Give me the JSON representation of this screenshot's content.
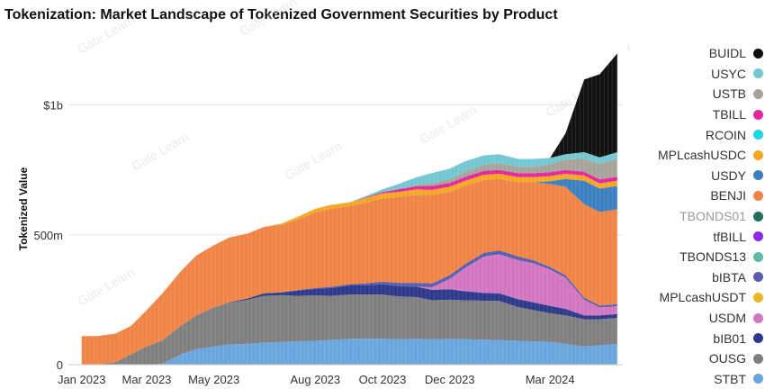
{
  "title": "Tokenization: Market Landscape of Tokenized Government Securities by Product",
  "watermark": "Gate Learn",
  "chart_data": {
    "type": "area",
    "stacked": true,
    "ylabel": "Tokenized Value",
    "xlabel": "",
    "x_tick_labels": [
      "Jan 2023",
      "Mar 2023",
      "May 2023",
      "Aug 2023",
      "Oct 2023",
      "Dec 2023",
      "Mar 2024"
    ],
    "y_ticks": [
      {
        "value": 0,
        "label": "0"
      },
      {
        "value": 500,
        "label": "500m"
      },
      {
        "value": 1000,
        "label": "$1b"
      }
    ],
    "ylim": [
      0,
      1300
    ],
    "y_unit": "millions USD",
    "grid": true,
    "legend_position": "right",
    "x": [
      "2023-01-01",
      "2023-01-15",
      "2023-02-01",
      "2023-02-15",
      "2023-03-01",
      "2023-03-15",
      "2023-04-01",
      "2023-04-15",
      "2023-05-01",
      "2023-05-15",
      "2023-06-01",
      "2023-06-15",
      "2023-07-01",
      "2023-07-15",
      "2023-08-01",
      "2023-08-15",
      "2023-09-01",
      "2023-09-15",
      "2023-10-01",
      "2023-10-15",
      "2023-11-01",
      "2023-11-15",
      "2023-12-01",
      "2023-12-15",
      "2024-01-01",
      "2024-01-15",
      "2024-02-01",
      "2024-02-15",
      "2024-03-01",
      "2024-03-15",
      "2024-04-01",
      "2024-04-15",
      "2024-05-01"
    ],
    "series": [
      {
        "name": "STBT",
        "color": "#6aa6dd",
        "values": [
          0,
          0,
          0,
          0,
          0,
          3,
          40,
          60,
          70,
          78,
          80,
          85,
          88,
          90,
          92,
          95,
          100,
          100,
          100,
          98,
          100,
          98,
          100,
          98,
          96,
          95,
          92,
          90,
          88,
          80,
          70,
          75,
          80
        ]
      },
      {
        "name": "OUSG",
        "color": "#7f7f7f",
        "values": [
          0,
          0,
          10,
          40,
          70,
          90,
          110,
          130,
          150,
          160,
          170,
          180,
          180,
          175,
          175,
          170,
          170,
          170,
          170,
          165,
          160,
          150,
          150,
          150,
          150,
          150,
          130,
          120,
          110,
          110,
          105,
          100,
          100
        ]
      },
      {
        "name": "bIB01",
        "color": "#2d3a8c",
        "values": [
          0,
          0,
          0,
          0,
          0,
          0,
          0,
          0,
          0,
          2,
          5,
          10,
          10,
          20,
          25,
          30,
          35,
          35,
          40,
          40,
          40,
          40,
          40,
          35,
          30,
          30,
          30,
          30,
          28,
          25,
          15,
          15,
          15
        ]
      },
      {
        "name": "USDM",
        "color": "#d376c2",
        "values": [
          0,
          0,
          0,
          0,
          0,
          0,
          0,
          0,
          0,
          0,
          0,
          0,
          0,
          0,
          0,
          0,
          0,
          0,
          0,
          0,
          0,
          10,
          40,
          90,
          140,
          150,
          150,
          150,
          140,
          120,
          60,
          30,
          30
        ]
      },
      {
        "name": "MPLcashUSDT",
        "color": "#e8b82a",
        "values": [
          0,
          0,
          0,
          0,
          0,
          0,
          0,
          0,
          0,
          0,
          0,
          0,
          0,
          0,
          0,
          0,
          0,
          0,
          0,
          0,
          0,
          0,
          0,
          0,
          0,
          0,
          0,
          0,
          0,
          0,
          0,
          0,
          0
        ]
      },
      {
        "name": "bIBTA",
        "color": "#5a5dab",
        "values": [
          0,
          0,
          0,
          0,
          0,
          0,
          0,
          0,
          0,
          0,
          0,
          0,
          0,
          2,
          3,
          5,
          5,
          8,
          10,
          12,
          15,
          15,
          15,
          15,
          15,
          15,
          15,
          12,
          10,
          10,
          8,
          8,
          8
        ]
      },
      {
        "name": "TBONDS13",
        "color": "#5fb8a8",
        "values": [
          0,
          0,
          0,
          0,
          0,
          0,
          0,
          0,
          0,
          0,
          0,
          0,
          0,
          0,
          0,
          0,
          0,
          0,
          0,
          0,
          0,
          0,
          0,
          0,
          0,
          0,
          0,
          0,
          0,
          0,
          0,
          0,
          0
        ]
      },
      {
        "name": "tfBILL",
        "color": "#8a2be2",
        "values": [
          0,
          0,
          0,
          0,
          0,
          0,
          0,
          0,
          0,
          0,
          0,
          0,
          0,
          0,
          0,
          0,
          0,
          0,
          0,
          0,
          0,
          0,
          0,
          0,
          0,
          0,
          0,
          0,
          0,
          0,
          0,
          0,
          0
        ]
      },
      {
        "name": "TBONDS01",
        "color": "#1f6f5c",
        "values": [
          0,
          0,
          0,
          0,
          0,
          0,
          0,
          0,
          0,
          0,
          0,
          0,
          0,
          0,
          0,
          0,
          0,
          0,
          0,
          0,
          0,
          0,
          0,
          0,
          0,
          0,
          0,
          0,
          0,
          0,
          0,
          0,
          0
        ]
      },
      {
        "name": "BENJI",
        "color": "#f08446",
        "values": [
          110,
          110,
          110,
          110,
          140,
          180,
          210,
          230,
          240,
          250,
          250,
          255,
          260,
          270,
          290,
          300,
          300,
          310,
          320,
          330,
          340,
          340,
          320,
          300,
          280,
          275,
          285,
          300,
          320,
          340,
          360,
          360,
          365
        ]
      },
      {
        "name": "USDY",
        "color": "#3b7fc0",
        "values": [
          0,
          0,
          0,
          0,
          0,
          0,
          0,
          0,
          0,
          0,
          0,
          0,
          0,
          0,
          0,
          0,
          0,
          0,
          0,
          0,
          0,
          0,
          0,
          0,
          0,
          0,
          0,
          0,
          10,
          30,
          90,
          90,
          90
        ]
      },
      {
        "name": "MPLcashUSDC",
        "color": "#f5a623",
        "values": [
          0,
          0,
          0,
          0,
          0,
          0,
          0,
          0,
          0,
          0,
          0,
          0,
          5,
          10,
          15,
          15,
          15,
          18,
          20,
          20,
          20,
          20,
          20,
          20,
          20,
          20,
          20,
          20,
          20,
          20,
          20,
          20,
          20
        ]
      },
      {
        "name": "RCOIN",
        "color": "#20d4e0",
        "values": [
          0,
          0,
          0,
          0,
          0,
          0,
          0,
          0,
          0,
          0,
          0,
          0,
          0,
          0,
          0,
          0,
          0,
          0,
          0,
          0,
          0,
          0,
          0,
          0,
          0,
          0,
          0,
          0,
          0,
          0,
          0,
          0,
          0
        ]
      },
      {
        "name": "TBILL",
        "color": "#e4279b",
        "values": [
          0,
          0,
          0,
          0,
          0,
          0,
          0,
          0,
          0,
          0,
          0,
          0,
          0,
          0,
          0,
          0,
          0,
          2,
          5,
          10,
          12,
          15,
          15,
          15,
          15,
          15,
          15,
          15,
          15,
          15,
          15,
          15,
          15
        ]
      },
      {
        "name": "USTB",
        "color": "#a6a39a",
        "values": [
          0,
          0,
          0,
          0,
          0,
          0,
          0,
          0,
          0,
          0,
          0,
          0,
          0,
          0,
          0,
          0,
          0,
          0,
          0,
          0,
          5,
          10,
          15,
          20,
          25,
          25,
          25,
          25,
          30,
          40,
          50,
          60,
          70
        ]
      },
      {
        "name": "USYC",
        "color": "#72c7d1",
        "values": [
          0,
          0,
          0,
          0,
          0,
          0,
          0,
          0,
          0,
          0,
          0,
          0,
          0,
          0,
          0,
          0,
          0,
          5,
          10,
          20,
          30,
          40,
          40,
          40,
          35,
          35,
          30,
          30,
          25,
          20,
          25,
          25,
          25
        ]
      },
      {
        "name": "BUIDL",
        "color": "#111111",
        "values": [
          0,
          0,
          0,
          0,
          0,
          0,
          0,
          0,
          0,
          0,
          0,
          0,
          0,
          0,
          0,
          0,
          0,
          0,
          0,
          0,
          0,
          0,
          0,
          0,
          0,
          0,
          0,
          0,
          0,
          80,
          280,
          320,
          380
        ]
      }
    ]
  },
  "legend_order": [
    "BUIDL",
    "USYC",
    "USTB",
    "TBILL",
    "RCOIN",
    "MPLcashUSDC",
    "USDY",
    "BENJI",
    "TBONDS01",
    "tfBILL",
    "TBONDS13",
    "bIBTA",
    "MPLcashUSDT",
    "USDM",
    "bIB01",
    "OUSG",
    "STBT"
  ]
}
